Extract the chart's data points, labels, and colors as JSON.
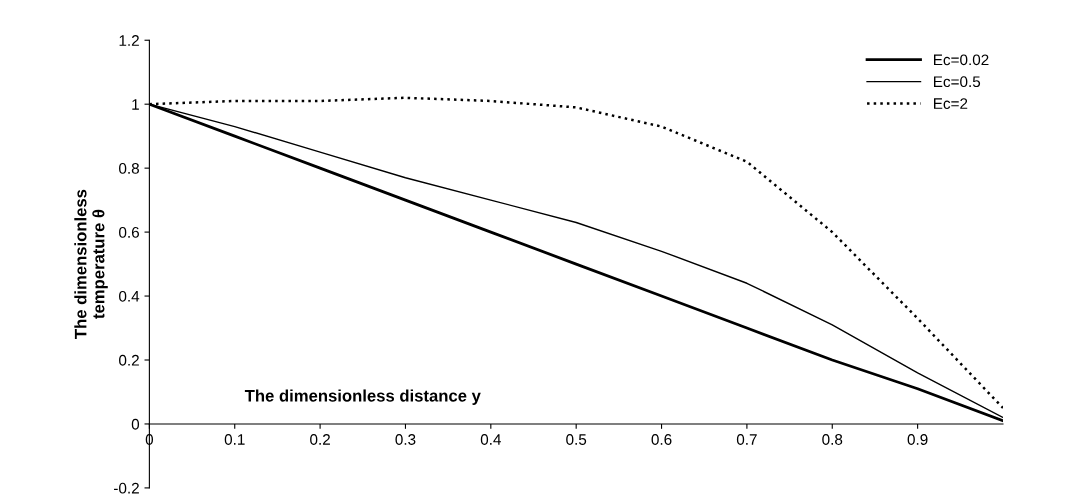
{
  "chart_data": {
    "type": "line",
    "xlabel": "The dimensionless distance y",
    "ylabel": "The dimensionless\ntemperature θ",
    "x": [
      0,
      0.1,
      0.2,
      0.3,
      0.4,
      0.5,
      0.6,
      0.7,
      0.8,
      0.9,
      1
    ],
    "series": [
      {
        "name": "Ec=0.02",
        "color": "#000000",
        "line_style": "solid",
        "values": [
          1,
          0.9,
          0.8,
          0.7,
          0.6,
          0.5,
          0.4,
          0.3,
          0.2,
          0.11,
          0.01
        ]
      },
      {
        "name": "Ec=0.5",
        "color": "#000000",
        "line_style": "solid",
        "values": [
          1,
          0.93,
          0.85,
          0.77,
          0.7,
          0.63,
          0.54,
          0.44,
          0.31,
          0.16,
          0.02
        ]
      },
      {
        "name": "Ec=2",
        "color": "#000000",
        "line_style": "dotted",
        "values": [
          1,
          1.01,
          1.01,
          1.02,
          1.01,
          0.99,
          0.93,
          0.82,
          0.6,
          0.33,
          0.05
        ]
      }
    ],
    "xlim": [
      0,
      1
    ],
    "xticks": [
      0,
      0.1,
      0.2,
      0.3,
      0.4,
      0.5,
      0.6,
      0.7,
      0.8,
      0.9
    ],
    "ylim": [
      -0.2,
      1.2
    ],
    "yticks": [
      -0.2,
      0,
      0.2,
      0.4,
      0.6,
      0.8,
      1,
      1.2
    ],
    "legend": "top right",
    "marker": "none",
    "grid": false
  }
}
